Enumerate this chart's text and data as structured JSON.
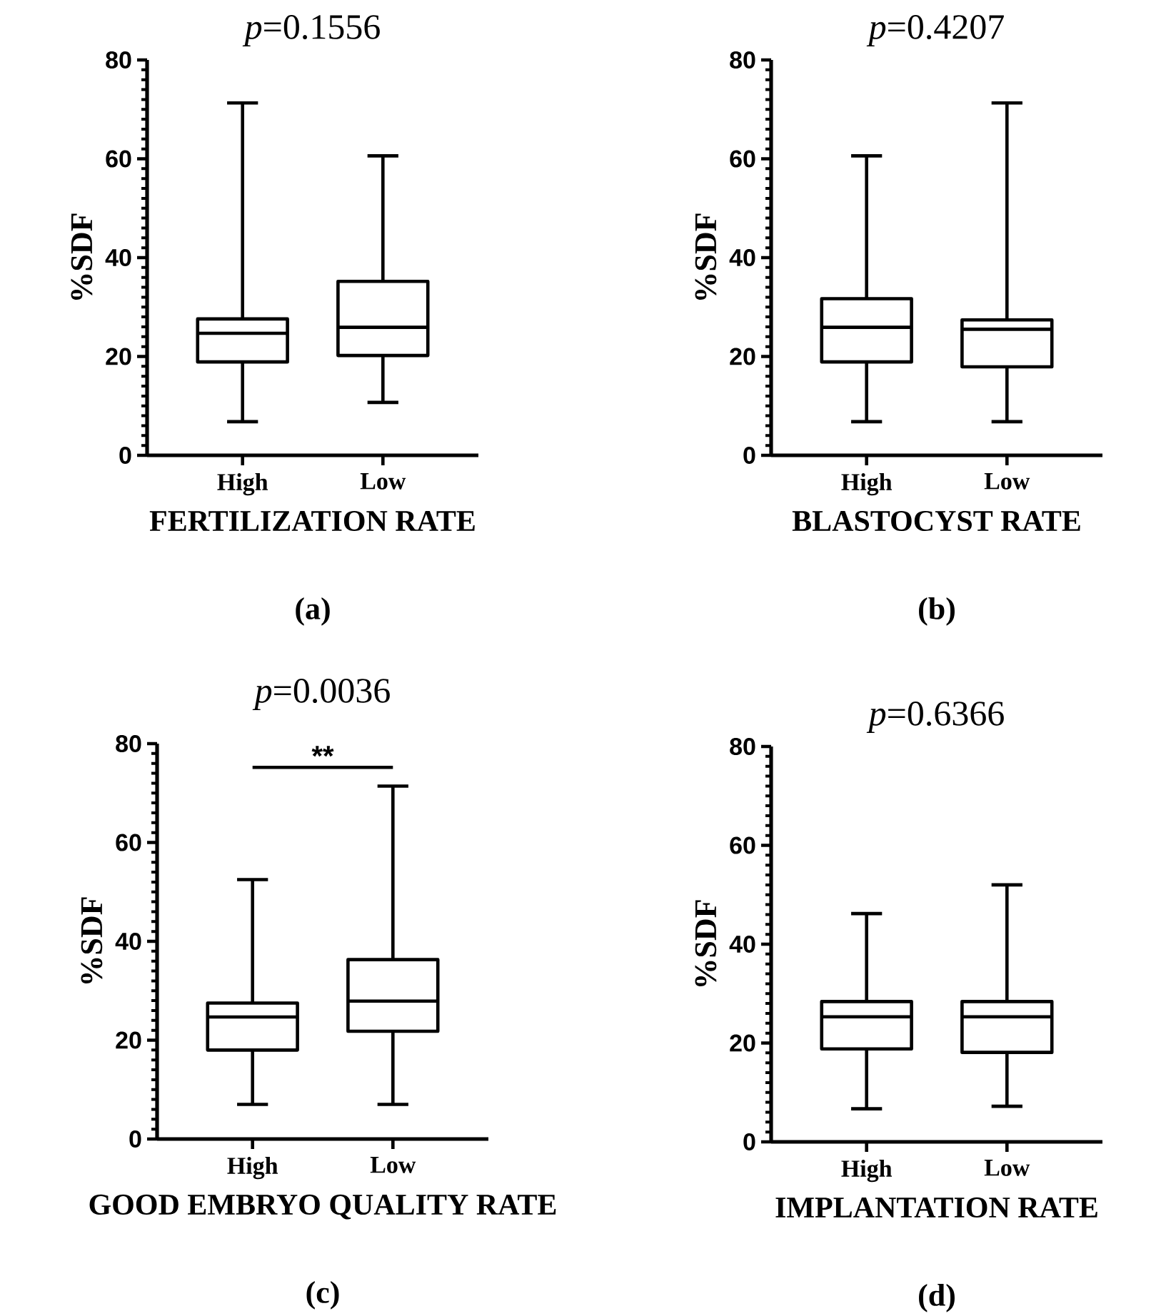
{
  "chart_data": [
    {
      "type": "box",
      "title": "*p*=0.1556",
      "subtitle": "(a)",
      "xlabel": "FERTILIZATION RATE",
      "ylabel": "%SDF",
      "categories": [
        "High",
        "Low"
      ],
      "color": "#000000",
      "boxes": [
        {
          "low": 6.8,
          "q1": 18.9,
          "median": 24.7,
          "q3": 27.6,
          "high": 71.3
        },
        {
          "low": 10.7,
          "q1": 20.2,
          "median": 25.9,
          "q3": 35.2,
          "high": 60.6
        }
      ],
      "ylim": [
        0,
        80
      ],
      "yticks": [
        0,
        20,
        40,
        60,
        80
      ]
    },
    {
      "type": "box",
      "title": "*p*=0.4207",
      "subtitle": "(b)",
      "xlabel": "BLASTOCYST RATE",
      "ylabel": "%SDF",
      "categories": [
        "High",
        "Low"
      ],
      "color": "#000000",
      "boxes": [
        {
          "low": 6.8,
          "q1": 18.9,
          "median": 25.9,
          "q3": 31.7,
          "high": 60.6
        },
        {
          "low": 6.8,
          "q1": 17.9,
          "median": 25.5,
          "q3": 27.4,
          "high": 71.3
        }
      ],
      "ylim": [
        0,
        80
      ],
      "yticks": [
        0,
        20,
        40,
        60,
        80
      ]
    },
    {
      "type": "box",
      "title": "*p*=0.0036",
      "subtitle": "(c)",
      "xlabel": "GOOD EMBRYO QUALITY RATE",
      "ylabel": "%SDF",
      "categories": [
        "High",
        "Low"
      ],
      "color": "#000000",
      "boxes": [
        {
          "low": 7.0,
          "q1": 18.0,
          "median": 24.7,
          "q3": 27.5,
          "high": 52.5
        },
        {
          "low": 7.0,
          "q1": 21.8,
          "median": 27.9,
          "q3": 36.3,
          "high": 71.4
        }
      ],
      "ylim": [
        0,
        80
      ],
      "yticks": [
        0,
        20,
        40,
        60,
        80
      ],
      "annotations": [
        "**"
      ]
    },
    {
      "type": "box",
      "title": "*p*=0.6366",
      "subtitle": "(d)",
      "xlabel": "IMPLANTATION RATE",
      "ylabel": "%SDF",
      "categories": [
        "High",
        "Low"
      ],
      "color": "#000000",
      "boxes": [
        {
          "low": 6.7,
          "q1": 18.8,
          "median": 25.3,
          "q3": 28.4,
          "high": 46.2
        },
        {
          "low": 7.2,
          "q1": 18.1,
          "median": 25.3,
          "q3": 28.4,
          "high": 52.0
        }
      ],
      "ylim": [
        0,
        80
      ],
      "yticks": [
        0,
        20,
        40,
        60,
        80
      ]
    }
  ]
}
